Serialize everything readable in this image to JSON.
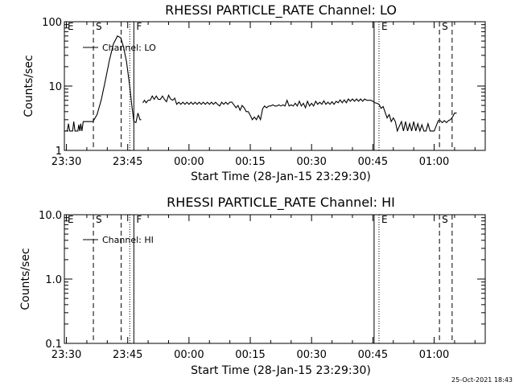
{
  "chart_data": [
    {
      "type": "line",
      "title": "RHESSI PARTICLE_RATE Channel: LO",
      "xlabel": "Start Time (28-Jan-15 23:29:30)",
      "ylabel": "Counts/sec",
      "yscale": "log",
      "ylim": [
        1,
        100
      ],
      "xlim_minutes": [
        0,
        103
      ],
      "yticks": [
        {
          "v": 1,
          "label": "1"
        },
        {
          "v": 10,
          "label": "10"
        },
        {
          "v": 100,
          "label": "100"
        }
      ],
      "xticks": [
        {
          "t": 0.5,
          "label": "23:30"
        },
        {
          "t": 15.5,
          "label": "23:45"
        },
        {
          "t": 30.5,
          "label": "00:00"
        },
        {
          "t": 45.5,
          "label": "00:15"
        },
        {
          "t": 60.5,
          "label": "00:30"
        },
        {
          "t": 75.5,
          "label": "00:45"
        },
        {
          "t": 90.5,
          "label": "01:00"
        }
      ],
      "legend": {
        "placement": "top-left",
        "entries": [
          "Channel: LO"
        ]
      },
      "markers": [
        {
          "t": 0.2,
          "style": "none",
          "label": "E"
        },
        {
          "t": 7.1,
          "style": "dashed",
          "label": "S"
        },
        {
          "t": 13.9,
          "style": "dashed",
          "label": ""
        },
        {
          "t": 16.0,
          "style": "dotted",
          "label": ""
        },
        {
          "t": 17.0,
          "style": "solid",
          "label": "F"
        },
        {
          "t": 75.8,
          "style": "solid",
          "label": ""
        },
        {
          "t": 77.0,
          "style": "dotted",
          "label": "E"
        },
        {
          "t": 91.8,
          "style": "dashed",
          "label": "S"
        },
        {
          "t": 94.9,
          "style": "dashed",
          "label": ""
        }
      ],
      "series": [
        {
          "name": "Channel: LO",
          "segments": [
            [
              [
                0,
                2
              ],
              [
                0.7,
                2
              ],
              [
                1.0,
                2.6
              ],
              [
                1.3,
                2
              ],
              [
                2.0,
                2
              ],
              [
                2.3,
                2.8
              ],
              [
                2.6,
                2
              ],
              [
                3.3,
                2
              ],
              [
                3.5,
                2.5
              ],
              [
                3.8,
                2
              ],
              [
                4.0,
                2.6
              ],
              [
                4.3,
                2
              ],
              [
                4.6,
                2.8
              ],
              [
                5.0,
                2.8
              ],
              [
                6.0,
                2.8
              ],
              [
                7.0,
                2.8
              ],
              [
                8.0,
                3.6
              ],
              [
                9.0,
                6
              ],
              [
                10.0,
                12
              ],
              [
                11.0,
                25
              ],
              [
                12.0,
                45
              ],
              [
                13.0,
                60
              ],
              [
                13.8,
                56
              ],
              [
                14.5,
                40
              ],
              [
                15.2,
                24
              ],
              [
                16.0,
                10
              ],
              [
                16.5,
                5
              ],
              [
                17.0,
                2.8
              ],
              [
                17.5,
                2.7
              ],
              [
                18.0,
                3.8
              ],
              [
                18.5,
                3.0
              ],
              [
                18.8,
                3.0
              ]
            ],
            [
              [
                19.2,
                5.5
              ],
              [
                19.6,
                6.0
              ],
              [
                20,
                5.5
              ],
              [
                20.5,
                6
              ],
              [
                21,
                6
              ],
              [
                21.5,
                7
              ],
              [
                22,
                6.2
              ],
              [
                22.5,
                7
              ],
              [
                23,
                6.2
              ],
              [
                23.5,
                6.2
              ],
              [
                24,
                7
              ],
              [
                24.5,
                6.2
              ],
              [
                25,
                5.7
              ],
              [
                25.5,
                7.2
              ],
              [
                26,
                6.3
              ],
              [
                26.5,
                6
              ],
              [
                27,
                6.5
              ],
              [
                27.5,
                5.2
              ],
              [
                28,
                5.6
              ],
              [
                28.5,
                5.2
              ],
              [
                29,
                5.6
              ],
              [
                29.5,
                5.2
              ],
              [
                30,
                5.6
              ],
              [
                30.5,
                5.2
              ],
              [
                31,
                5.6
              ],
              [
                31.5,
                5.2
              ],
              [
                32,
                5.6
              ],
              [
                32.5,
                5.2
              ],
              [
                33,
                5.6
              ],
              [
                33.5,
                5.2
              ],
              [
                34,
                5.6
              ],
              [
                34.5,
                5.2
              ],
              [
                35,
                5.6
              ],
              [
                35.5,
                5.2
              ],
              [
                36,
                5.6
              ],
              [
                36.5,
                5.2
              ],
              [
                37,
                5.6
              ],
              [
                37.5,
                5.2
              ],
              [
                38,
                4.9
              ],
              [
                38.5,
                5.6
              ],
              [
                39,
                5.2
              ],
              [
                39.5,
                5.6
              ],
              [
                40,
                5.2
              ],
              [
                40.5,
                5.6
              ],
              [
                41,
                5.6
              ],
              [
                41.5,
                5.1
              ],
              [
                42,
                4.6
              ],
              [
                42.5,
                5.0
              ],
              [
                43,
                4.2
              ],
              [
                43.5,
                5.0
              ],
              [
                44,
                4.6
              ],
              [
                44.5,
                4.0
              ],
              [
                45,
                4.0
              ],
              [
                45.5,
                3.5
              ],
              [
                46,
                3.0
              ],
              [
                46.5,
                3.3
              ],
              [
                47,
                3.0
              ],
              [
                47.5,
                3.5
              ],
              [
                48,
                3.0
              ],
              [
                48.5,
                4.4
              ],
              [
                49,
                4.9
              ],
              [
                49.5,
                4.6
              ],
              [
                50,
                4.9
              ],
              [
                50.5,
                4.9
              ],
              [
                51,
                5.1
              ],
              [
                51.5,
                4.9
              ],
              [
                52,
                4.9
              ],
              [
                52.5,
                5.1
              ],
              [
                53,
                4.9
              ],
              [
                53.5,
                5.1
              ],
              [
                54,
                4.9
              ],
              [
                54.5,
                6.0
              ],
              [
                55,
                4.9
              ],
              [
                55.5,
                5.1
              ],
              [
                56,
                4.9
              ],
              [
                56.5,
                5.4
              ],
              [
                57,
                4.9
              ],
              [
                57.5,
                5.8
              ],
              [
                58,
                4.9
              ],
              [
                58.5,
                5.4
              ],
              [
                59,
                4.6
              ],
              [
                59.5,
                5.8
              ],
              [
                60,
                4.9
              ],
              [
                60.5,
                5.4
              ],
              [
                61,
                4.9
              ],
              [
                61.5,
                5.8
              ],
              [
                62,
                5.2
              ],
              [
                62.5,
                5.6
              ],
              [
                63,
                5.2
              ],
              [
                63.5,
                5.9
              ],
              [
                64,
                5.2
              ],
              [
                64.5,
                5.6
              ],
              [
                65,
                5.2
              ],
              [
                65.5,
                5.7
              ],
              [
                66,
                5.2
              ],
              [
                66.5,
                5.8
              ],
              [
                67,
                5.5
              ],
              [
                67.5,
                6.1
              ],
              [
                68,
                5.5
              ],
              [
                68.5,
                6.1
              ],
              [
                69,
                5.5
              ],
              [
                69.5,
                6.3
              ],
              [
                70,
                5.8
              ],
              [
                70.5,
                6.3
              ],
              [
                71,
                5.8
              ],
              [
                71.5,
                6.3
              ],
              [
                72,
                5.8
              ],
              [
                72.5,
                6.3
              ],
              [
                73,
                5.8
              ],
              [
                73.5,
                6.3
              ],
              [
                74,
                6
              ],
              [
                74.5,
                6
              ],
              [
                75,
                6
              ],
              [
                75.5,
                5.8
              ],
              [
                76,
                5.5
              ],
              [
                76.5,
                5.4
              ],
              [
                77,
                5.2
              ],
              [
                77.5,
                4.5
              ],
              [
                78,
                4.8
              ],
              [
                78.5,
                3.9
              ],
              [
                79,
                3.2
              ],
              [
                79.5,
                3.6
              ],
              [
                80,
                2.8
              ],
              [
                80.5,
                3.2
              ],
              [
                81,
                2.8
              ],
              [
                81.5,
                2.0
              ],
              [
                82,
                2.4
              ],
              [
                82.5,
                2.8
              ],
              [
                83,
                2.0
              ],
              [
                83.5,
                2.8
              ],
              [
                84,
                2.0
              ],
              [
                84.5,
                2.6
              ],
              [
                85,
                2.0
              ],
              [
                85.5,
                2.8
              ],
              [
                86,
                2.0
              ],
              [
                86.5,
                2.6
              ],
              [
                87,
                2.0
              ],
              [
                87.5,
                2.5
              ],
              [
                88,
                2.0
              ],
              [
                88.5,
                2.0
              ],
              [
                89,
                2.6
              ],
              [
                89.5,
                2.0
              ],
              [
                90,
                2.0
              ],
              [
                90.5,
                2.0
              ],
              [
                91,
                2.4
              ],
              [
                91.5,
                2.9
              ],
              [
                92,
                2.9
              ],
              [
                92.5,
                2.7
              ],
              [
                93,
                2.9
              ],
              [
                93.5,
                2.7
              ],
              [
                94,
                2.9
              ],
              [
                94.5,
                3.0
              ],
              [
                95,
                3.3
              ],
              [
                95.5,
                3.8
              ],
              [
                96,
                3.8
              ]
            ]
          ]
        }
      ]
    },
    {
      "type": "line",
      "title": "RHESSI PARTICLE_RATE Channel: HI",
      "xlabel": "Start Time (28-Jan-15 23:29:30)",
      "ylabel": "Counts/sec",
      "yscale": "log",
      "ylim": [
        0.1,
        10
      ],
      "xlim_minutes": [
        0,
        103
      ],
      "yticks": [
        {
          "v": 0.1,
          "label": "0.1"
        },
        {
          "v": 1,
          "label": "1.0"
        },
        {
          "v": 10,
          "label": "10.0"
        }
      ],
      "xticks": [
        {
          "t": 0.5,
          "label": "23:30"
        },
        {
          "t": 15.5,
          "label": "23:45"
        },
        {
          "t": 30.5,
          "label": "00:00"
        },
        {
          "t": 45.5,
          "label": "00:15"
        },
        {
          "t": 60.5,
          "label": "00:30"
        },
        {
          "t": 75.5,
          "label": "00:45"
        },
        {
          "t": 90.5,
          "label": "01:00"
        }
      ],
      "legend": {
        "placement": "top-left",
        "entries": [
          "Channel: HI"
        ]
      },
      "markers": [
        {
          "t": 0.2,
          "style": "none",
          "label": "E"
        },
        {
          "t": 7.1,
          "style": "dashed",
          "label": "S"
        },
        {
          "t": 13.9,
          "style": "dashed",
          "label": ""
        },
        {
          "t": 16.0,
          "style": "dotted",
          "label": ""
        },
        {
          "t": 17.0,
          "style": "solid",
          "label": "F"
        },
        {
          "t": 75.8,
          "style": "solid",
          "label": ""
        },
        {
          "t": 77.0,
          "style": "dotted",
          "label": "E"
        },
        {
          "t": 91.8,
          "style": "dashed",
          "label": "S"
        },
        {
          "t": 94.9,
          "style": "dashed",
          "label": ""
        }
      ],
      "series": [
        {
          "name": "Channel: HI",
          "segments": []
        }
      ]
    }
  ],
  "footer": {
    "timestamp": "25-Oct-2021 18:43"
  }
}
